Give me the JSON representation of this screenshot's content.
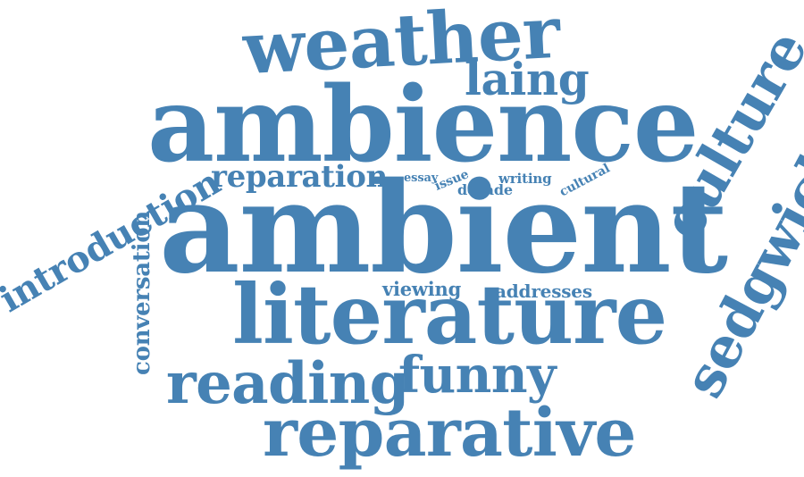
{
  "word_cloud": {
    "color": "#4682b4",
    "words": [
      {
        "text": "ambient",
        "orientation": "horizontal"
      },
      {
        "text": "ambience",
        "orientation": "horizontal"
      },
      {
        "text": "literature",
        "orientation": "horizontal"
      },
      {
        "text": "weather",
        "orientation": "horizontal"
      },
      {
        "text": "reparative",
        "orientation": "horizontal"
      },
      {
        "text": "reading",
        "orientation": "horizontal"
      },
      {
        "text": "funny",
        "orientation": "horizontal"
      },
      {
        "text": "culture",
        "orientation": "rotated"
      },
      {
        "text": "sedgwick",
        "orientation": "rotated"
      },
      {
        "text": "introduction",
        "orientation": "rotated"
      },
      {
        "text": "laing",
        "orientation": "horizontal"
      },
      {
        "text": "reparation",
        "orientation": "horizontal"
      },
      {
        "text": "conversation",
        "orientation": "vertical"
      },
      {
        "text": "viewing",
        "orientation": "horizontal"
      },
      {
        "text": "addresses",
        "orientation": "horizontal"
      },
      {
        "text": "essay",
        "orientation": "horizontal"
      },
      {
        "text": "issue",
        "orientation": "rotated"
      },
      {
        "text": "decade",
        "orientation": "horizontal"
      },
      {
        "text": "writing",
        "orientation": "horizontal"
      },
      {
        "text": "cultural",
        "orientation": "rotated"
      }
    ]
  }
}
